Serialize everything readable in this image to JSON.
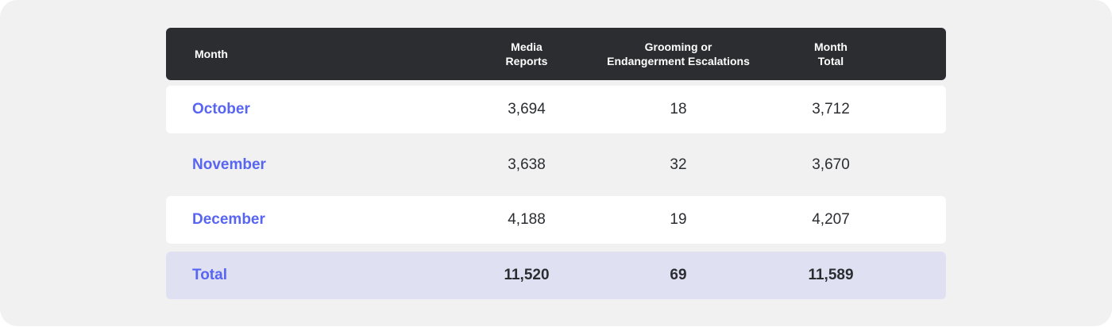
{
  "colors": {
    "header_bg": "#2b2d31",
    "accent": "#5865f2",
    "total_row_bg": "#dfe1f3",
    "panel_bg": "#f1f1f1"
  },
  "table": {
    "headers": {
      "month": "Month",
      "media": [
        "Media",
        "Reports"
      ],
      "escalations": [
        "Grooming or",
        "Endangerment Escalations"
      ],
      "total": [
        "Month",
        "Total"
      ]
    },
    "rows": [
      {
        "month": "October",
        "media": "3,694",
        "escalations": "18",
        "total": "3,712"
      },
      {
        "month": "November",
        "media": "3,638",
        "escalations": "32",
        "total": "3,670"
      },
      {
        "month": "December",
        "media": "4,188",
        "escalations": "19",
        "total": "4,207"
      }
    ],
    "total_row": {
      "label": "Total",
      "media": "11,520",
      "escalations": "69",
      "total": "11,589"
    }
  }
}
